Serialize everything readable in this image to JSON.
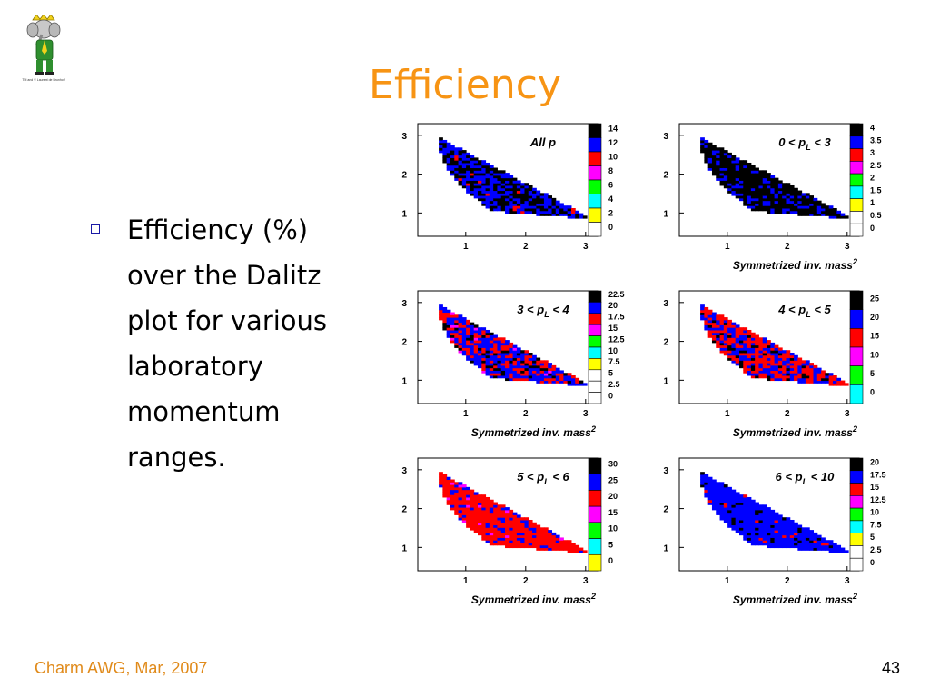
{
  "slide": {
    "title": "Efficiency",
    "bullet": "Efficiency (%) over the Dalitz plot for various laboratory momentum ranges.",
    "footer_left": "Charm AWG, Mar, 2007",
    "page_number": "43",
    "logo_caption": "TM and © Laurent de Brunhoff"
  },
  "colors": {
    "title": "#f79414",
    "footer": "#e08a1a",
    "bullet_square": "#1a1aa6",
    "palette": [
      "#ffffff",
      "#ffff00",
      "#00ffff",
      "#00ff00",
      "#ff00ff",
      "#ff0000",
      "#0000ff",
      "#000000"
    ]
  },
  "chart_data": [
    {
      "type": "heatmap",
      "annotation": "All p",
      "xlabel": "",
      "x_ticks": [
        "1",
        "2",
        "3"
      ],
      "y_ticks": [
        "1",
        "2",
        "3"
      ],
      "scale_labels": [
        "14",
        "12",
        "10",
        "8",
        "6",
        "4",
        "2",
        "0"
      ],
      "zlim": [
        0,
        14
      ],
      "pattern": [
        {
          "code": 7,
          "share": 0.45
        },
        {
          "code": 6,
          "share": 0.53
        },
        {
          "code": 5,
          "share": 0.02
        }
      ]
    },
    {
      "type": "heatmap",
      "annotation": "0 < p_L < 3",
      "xlabel": "Symmetrized inv. mass²",
      "x_ticks": [
        "1",
        "2",
        "3"
      ],
      "y_ticks": [
        "1",
        "2",
        "3"
      ],
      "scale_labels": [
        "4",
        "3.5",
        "3",
        "2.5",
        "2",
        "1.5",
        "1",
        "0.5",
        "0"
      ],
      "zlim": [
        0,
        4
      ],
      "pattern": [
        {
          "code": 7,
          "share": 0.78
        },
        {
          "code": 6,
          "share": 0.22
        }
      ]
    },
    {
      "type": "heatmap",
      "annotation": "3 < p_L < 4",
      "xlabel": "Symmetrized inv. mass²",
      "x_ticks": [
        "1",
        "2",
        "3"
      ],
      "y_ticks": [
        "1",
        "2",
        "3"
      ],
      "scale_labels": [
        "22.5",
        "20",
        "17.5",
        "15",
        "12.5",
        "10",
        "7.5",
        "5",
        "2.5",
        "0"
      ],
      "zlim": [
        0,
        22.5
      ],
      "pattern": [
        {
          "code": 6,
          "share": 0.5
        },
        {
          "code": 5,
          "share": 0.33
        },
        {
          "code": 7,
          "share": 0.15
        },
        {
          "code": 4,
          "share": 0.02
        }
      ]
    },
    {
      "type": "heatmap",
      "annotation": "4 < p_L < 5",
      "xlabel": "Symmetrized inv. mass²",
      "x_ticks": [
        "1",
        "2",
        "3"
      ],
      "y_ticks": [
        "1",
        "2",
        "3"
      ],
      "scale_labels": [
        "25",
        "20",
        "15",
        "10",
        "5",
        "0"
      ],
      "zlim": [
        0,
        25
      ],
      "pattern": [
        {
          "code": 5,
          "share": 0.52
        },
        {
          "code": 6,
          "share": 0.4
        },
        {
          "code": 7,
          "share": 0.08
        }
      ]
    },
    {
      "type": "heatmap",
      "annotation": "5 < p_L < 6",
      "xlabel": "Symmetrized inv. mass²",
      "x_ticks": [
        "1",
        "2",
        "3"
      ],
      "y_ticks": [
        "1",
        "2",
        "3"
      ],
      "scale_labels": [
        "30",
        "25",
        "20",
        "15",
        "10",
        "5",
        "0"
      ],
      "zlim": [
        0,
        30
      ],
      "pattern": [
        {
          "code": 5,
          "share": 0.78
        },
        {
          "code": 6,
          "share": 0.18
        },
        {
          "code": 4,
          "share": 0.04
        }
      ]
    },
    {
      "type": "heatmap",
      "annotation": "6 < p_L < 10",
      "xlabel": "Symmetrized inv. mass²",
      "x_ticks": [
        "1",
        "2",
        "3"
      ],
      "y_ticks": [
        "1",
        "2",
        "3"
      ],
      "scale_labels": [
        "20",
        "17.5",
        "15",
        "12.5",
        "10",
        "7.5",
        "5",
        "2.5",
        "0"
      ],
      "zlim": [
        0,
        20
      ],
      "pattern": [
        {
          "code": 6,
          "share": 0.85
        },
        {
          "code": 7,
          "share": 0.1
        },
        {
          "code": 5,
          "share": 0.05
        }
      ]
    }
  ]
}
